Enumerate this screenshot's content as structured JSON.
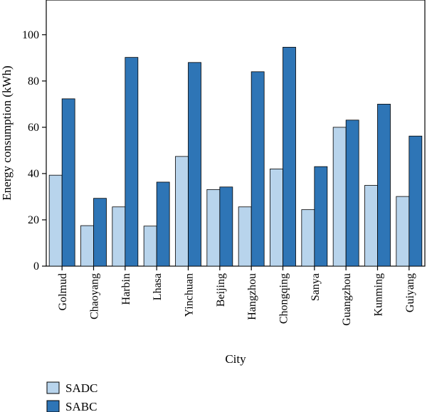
{
  "chart_data": {
    "type": "bar",
    "title": "",
    "xlabel": "City",
    "ylabel": "Energy consumption (kWh)",
    "ylim": [
      0,
      115
    ],
    "yticks": [
      0,
      20,
      40,
      60,
      80,
      100
    ],
    "grid": false,
    "legend_position": "bottom-left",
    "categories": [
      "Golmud",
      "Chaoyang",
      "Harbin",
      "Lhasa",
      "Yinchuan",
      "Beijing",
      "Hangzhou",
      "Chongqing",
      "Sanya",
      "Guangzhou",
      "Kunming",
      "Guiyang"
    ],
    "series": [
      {
        "name": "SADC",
        "color": "#b8d4ec",
        "values": [
          39.3,
          17.5,
          25.6,
          17.3,
          47.4,
          33.1,
          25.6,
          42.0,
          24.4,
          60.0,
          34.9,
          30.1
        ]
      },
      {
        "name": "SABC",
        "color": "#2e75b6",
        "values": [
          72.3,
          29.3,
          90.2,
          36.3,
          88.0,
          34.2,
          84.0,
          94.6,
          43.0,
          63.1,
          70.0,
          56.2
        ]
      }
    ]
  }
}
